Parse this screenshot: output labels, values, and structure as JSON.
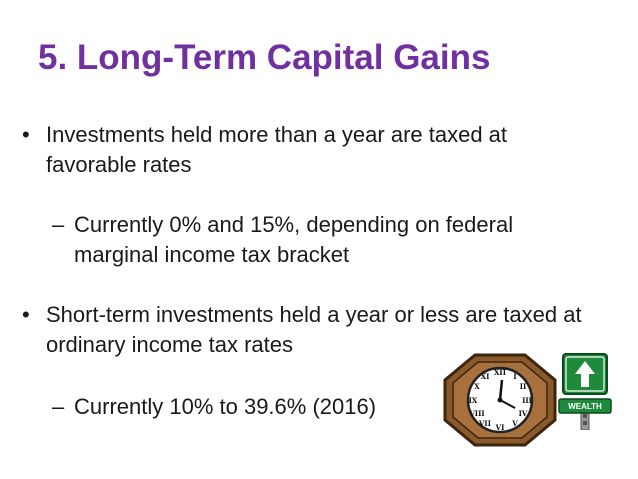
{
  "slide": {
    "title": "5. Long-Term Capital Gains",
    "bullets": [
      {
        "marker": "•",
        "text": "Investments held more than a year are taxed at favorable rates",
        "sub": {
          "marker": "–",
          "text": "Currently 0% and 15%, depending on federal marginal income tax bracket"
        }
      },
      {
        "marker": "•",
        "text": "Short-term investments held a year or less are taxed at ordinary income tax rates",
        "sub": {
          "marker": "–",
          "text": "Currently 10% to 39.6% (2016)"
        }
      }
    ],
    "images": {
      "clock_icon": "clock-icon",
      "sign_icon": "wealth-road-sign-icon",
      "sign_text": "WEALTH"
    },
    "colors": {
      "title": "#7030a0",
      "body_text": "#1a1a1a",
      "sign_green": "#1f8a3c",
      "clock_frame": "#7a5230"
    }
  }
}
